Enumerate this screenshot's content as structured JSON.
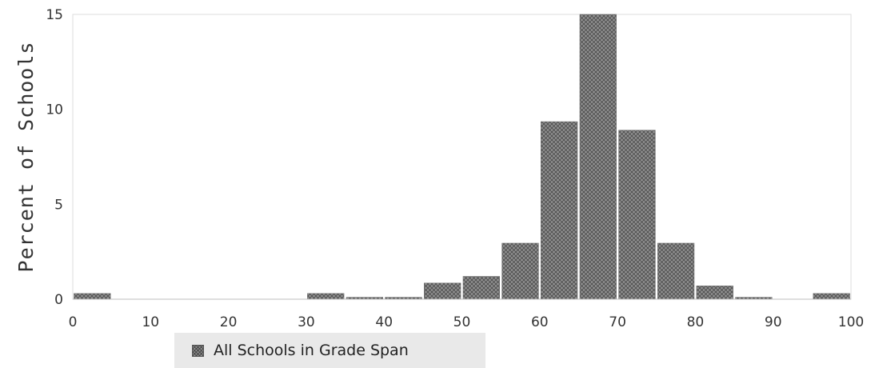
{
  "chart_data": {
    "type": "bar",
    "ylabel": "Percent of Schools",
    "xlabel": "",
    "xlim": [
      0,
      100
    ],
    "ylim": [
      0,
      15
    ],
    "x_ticks": [
      0,
      10,
      20,
      30,
      40,
      50,
      60,
      70,
      80,
      90,
      100
    ],
    "y_ticks": [
      0,
      5,
      10,
      15
    ],
    "grid": false,
    "legend_position": "bottom-left",
    "bar_width": 5,
    "series": [
      {
        "name": "All Schools in Grade Span",
        "color": "#8f8f8f",
        "pattern": "crosshatch",
        "bins": [
          {
            "start": 0,
            "end": 5,
            "value": 0.3
          },
          {
            "start": 5,
            "end": 10,
            "value": 0
          },
          {
            "start": 10,
            "end": 15,
            "value": 0
          },
          {
            "start": 15,
            "end": 20,
            "value": 0
          },
          {
            "start": 20,
            "end": 25,
            "value": 0
          },
          {
            "start": 25,
            "end": 30,
            "value": 0
          },
          {
            "start": 30,
            "end": 35,
            "value": 0.3
          },
          {
            "start": 35,
            "end": 40,
            "value": 0.1
          },
          {
            "start": 40,
            "end": 45,
            "value": 0.1
          },
          {
            "start": 45,
            "end": 50,
            "value": 0.85
          },
          {
            "start": 50,
            "end": 55,
            "value": 1.2
          },
          {
            "start": 55,
            "end": 60,
            "value": 2.95
          },
          {
            "start": 60,
            "end": 65,
            "value": 9.35
          },
          {
            "start": 65,
            "end": 70,
            "value": 15
          },
          {
            "start": 70,
            "end": 75,
            "value": 8.9
          },
          {
            "start": 75,
            "end": 80,
            "value": 2.95
          },
          {
            "start": 80,
            "end": 85,
            "value": 0.7
          },
          {
            "start": 85,
            "end": 90,
            "value": 0.1
          },
          {
            "start": 90,
            "end": 95,
            "value": 0
          },
          {
            "start": 95,
            "end": 100,
            "value": 0.3
          }
        ]
      }
    ]
  }
}
